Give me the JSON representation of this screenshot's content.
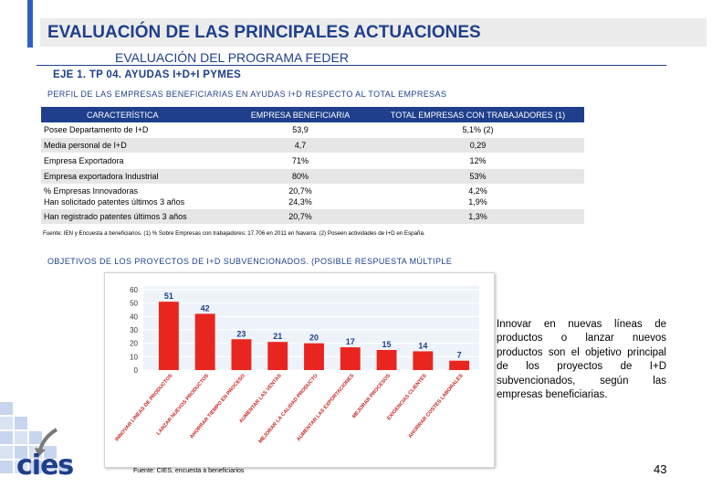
{
  "header": {
    "title": "EVALUACIÓN DE LAS PRINCIPALES ACTUACIONES",
    "subtitle": "EVALUACIÓN DEL PROGRAMA FEDER",
    "eje": "EJE 1. TP 04. AYUDAS I+D+I PYMES"
  },
  "profile": {
    "title": "PERFIL DE LAS EMPRESAS BENEFICIARIAS EN AYUDAS I+D RESPECTO AL TOTAL EMPRESAS",
    "columns": [
      "CARACTERÍSTICA",
      "EMPRESA BENEFICIARIA",
      "TOTAL EMPRESAS CON TRABAJADORES (1)"
    ],
    "rows": [
      {
        "label": "Posee Departamento de I+D",
        "beneficiary": "53,9",
        "total": "5,1% (2)"
      },
      {
        "label": "Media personal de I+D",
        "beneficiary": "4,7",
        "total": "0,29"
      },
      {
        "label": "Empresa Exportadora",
        "beneficiary": "71%",
        "total": "12%"
      },
      {
        "label": "Empresa exportadora Industrial",
        "beneficiary": "80%",
        "total": "53%"
      },
      {
        "label": "% Empresas Innovadoras",
        "label2": "Han solicitado patentes últimos 3 años",
        "beneficiary": "20,7%",
        "beneficiary2": "24,3%",
        "total": "4,2%",
        "total2": "1,9%"
      },
      {
        "label": "Han registrado patentes últimos 3 años",
        "beneficiary": "20,7%",
        "total": "1,3%"
      }
    ],
    "note": "Fuente: IEN y Encuesta a beneficiarios. (1) % Sobre Empresas con trabajadores: 17.706 en 2011 en Navarra. (2) Poseen actividades de I+D en España."
  },
  "objectives": {
    "title": "OBJETIVOS DE LOS PROYECTOS DE I+D SUBVENCIONADOS. (POSIBLE RESPUESTA MÚLTIPLE",
    "source": "Fuente: CIES, encuesta a beneficiarios",
    "side_text": "Innovar en nuevas líneas de productos o lanzar nuevos productos son el objetivo principal de los proyectos de I+D subvencionados, según las empresas beneficiarias."
  },
  "chart_data": {
    "type": "bar",
    "categories": [
      "INNOVAR LINEAS DE PRODUCTOS",
      "LANZAR NUEVOS PRODUCTOS",
      "AHORRAR TIEMPO EN PROCESO",
      "AUMENTAR LAS VENTAS",
      "MEJORAR LA CALIDAD PRODUCTO",
      "AUMENTAR LAS EXPORTACIONES",
      "MEJORAR PROCESOS",
      "EXIGENCIAS CLIENTES",
      "AHORRAR COSTES LABORALES"
    ],
    "values": [
      51,
      42,
      23,
      21,
      20,
      17,
      15,
      14,
      7
    ],
    "yticks": [
      "0",
      "10",
      "20",
      "30",
      "40",
      "50",
      "60"
    ],
    "ylim": [
      0,
      60
    ],
    "bar_color": "#e8261f",
    "grid": true
  },
  "footer": {
    "page_number": "43",
    "logo_text": "cies"
  },
  "colors": {
    "accent": "#1f3f8c",
    "table_header": "#1f3f8c",
    "row_grey": "#e6e6e6"
  }
}
